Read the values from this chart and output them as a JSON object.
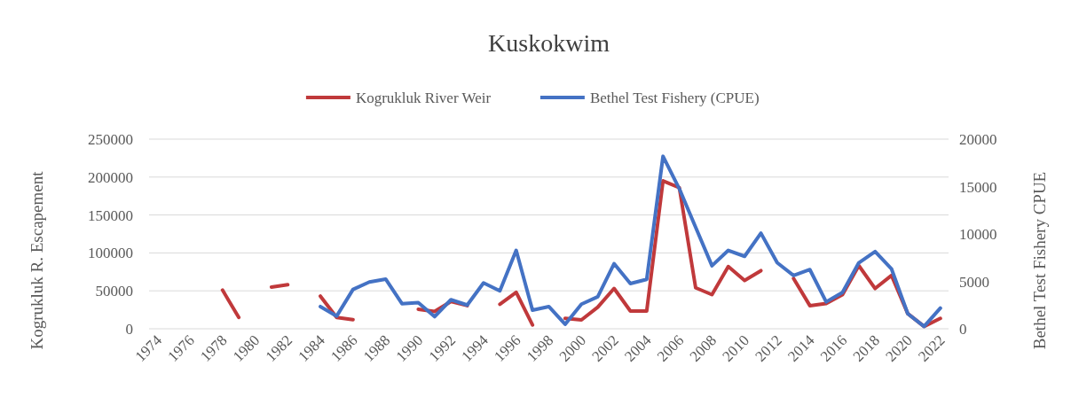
{
  "chart_data": {
    "type": "line",
    "title": "Kuskokwim",
    "ylabel": "Kogrukluk R. Escapement",
    "y2label": "Bethel Test Fishery CPUE",
    "categories": [
      "1974",
      null,
      "1976",
      null,
      "1978",
      null,
      "1980",
      null,
      "1982",
      null,
      "1984",
      null,
      "1986",
      null,
      "1988",
      null,
      "1990",
      null,
      "1992",
      null,
      "1994",
      null,
      "1996",
      null,
      "1998",
      null,
      "2000",
      null,
      "2002",
      null,
      "2004",
      null,
      "2006",
      null,
      "2008",
      null,
      "2010",
      null,
      "2012",
      null,
      "2014",
      null,
      "2016",
      null,
      "2018",
      null,
      "2020",
      null,
      "2022"
    ],
    "series": [
      {
        "name": "Kogrukluk River Weir",
        "color": "#c0393b",
        "values": [
          null,
          null,
          null,
          null,
          51000,
          15000,
          null,
          55000,
          58000,
          null,
          43000,
          14800,
          12100,
          null,
          null,
          null,
          25800,
          22700,
          36000,
          30500,
          null,
          32400,
          48000,
          5000,
          null,
          13700,
          11700,
          28500,
          53100,
          23400,
          23400,
          195000,
          186000,
          54000,
          45000,
          82000,
          63700,
          76600,
          null,
          66400,
          30500,
          33200,
          45000,
          83200,
          53100,
          70300,
          20000,
          3100,
          13700
        ]
      },
      {
        "name": "Bethel Test Fishery (CPUE)",
        "color": "#4472c4",
        "axis": "y2",
        "values": [
          null,
          null,
          null,
          null,
          null,
          null,
          null,
          null,
          null,
          null,
          2340,
          1340,
          4150,
          4930,
          5240,
          2650,
          2750,
          1280,
          3060,
          2500,
          4840,
          4000,
          8270,
          1970,
          2340,
          470,
          2590,
          3370,
          6860,
          4770,
          5210,
          18190,
          14760,
          10700,
          6650,
          8270,
          7640,
          10080,
          6960,
          5620,
          6240,
          2840,
          3840,
          6960,
          8140,
          6330,
          1590,
          250,
          2180
        ]
      }
    ],
    "ylim": [
      0,
      250000
    ],
    "yticks": [
      0,
      50000,
      100000,
      150000,
      200000,
      250000
    ],
    "y2lim": [
      0,
      20000
    ],
    "y2ticks": [
      0,
      5000,
      10000,
      15000,
      20000
    ],
    "grid": "y",
    "legend": "top",
    "marker": "none",
    "line_style": "solid"
  }
}
